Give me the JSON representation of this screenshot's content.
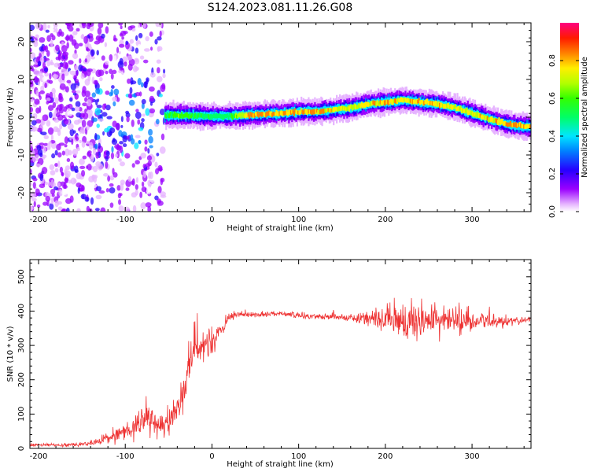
{
  "figure": {
    "title": "S124.2023.081.11.26.G08"
  },
  "chart_data": [
    {
      "type": "heatmap",
      "title": "S124.2023.081.11.26.G08",
      "xlabel": "Height of straight line (km)",
      "ylabel": "Frequency (Hz)",
      "xlim": [
        -210,
        368
      ],
      "ylim": [
        -25,
        25
      ],
      "xticks": [
        -200,
        -100,
        0,
        100,
        200,
        300
      ],
      "yticks": [
        -20,
        -10,
        0,
        10,
        20
      ],
      "colorbar": {
        "label": "Normalized spectral amplitude",
        "range": [
          0.0,
          1.0
        ],
        "ticks": [
          0.0,
          0.2,
          0.4,
          0.6,
          0.8
        ],
        "colormap": "hsv-like (magenta-blue-cyan-green-yellow-red)"
      },
      "ridge": {
        "x": [
          -55,
          -40,
          -20,
          0,
          20,
          40,
          60,
          80,
          100,
          120,
          140,
          160,
          180,
          200,
          220,
          240,
          260,
          280,
          300,
          320,
          340,
          360
        ],
        "frequency": [
          0.5,
          0.5,
          0.5,
          0.2,
          0.3,
          0.6,
          0.8,
          1.0,
          1.5,
          1.5,
          2.0,
          2.5,
          3.5,
          4.0,
          4.5,
          4.0,
          3.5,
          2.5,
          1.0,
          -0.5,
          -1.8,
          -2.5
        ],
        "amplitude": [
          0.6,
          0.7,
          0.65,
          0.6,
          0.6,
          0.9,
          0.95,
          0.9,
          0.9,
          0.9,
          0.85,
          0.8,
          0.85,
          0.9,
          0.85,
          0.9,
          0.85,
          0.85,
          0.85,
          0.85,
          0.9,
          0.9
        ]
      },
      "noise_region": {
        "x_range": [
          -210,
          -55
        ],
        "note": ""
      },
      "grid": false,
      "legend": "colorbar-right"
    },
    {
      "type": "line",
      "xlabel": "Height of straight line (km)",
      "ylabel": "SNR (10 * v/v)",
      "xlim": [
        -210,
        368
      ],
      "ylim": [
        0,
        550
      ],
      "xticks": [
        -200,
        -100,
        0,
        100,
        200,
        300
      ],
      "yticks": [
        0,
        100,
        200,
        300,
        400,
        500
      ],
      "series": [
        {
          "color": "#ee3333",
          "x": [
            -210,
            -180,
            -150,
            -130,
            -110,
            -90,
            -75,
            -60,
            -50,
            -40,
            -30,
            -20,
            -10,
            0,
            10,
            20,
            30,
            40,
            60,
            80,
            100,
            120,
            140,
            160,
            180,
            200,
            220,
            240,
            260,
            280,
            300,
            320,
            340,
            368
          ],
          "y": [
            10,
            10,
            12,
            20,
            40,
            60,
            90,
            60,
            70,
            120,
            200,
            300,
            310,
            300,
            340,
            380,
            390,
            390,
            390,
            395,
            385,
            385,
            385,
            380,
            380,
            375,
            370,
            370,
            375,
            370,
            370,
            370,
            370,
            375
          ],
          "noise_amplitude": [
            6,
            6,
            8,
            15,
            30,
            45,
            55,
            45,
            50,
            80,
            90,
            80,
            70,
            70,
            35,
            18,
            12,
            10,
            10,
            10,
            12,
            12,
            15,
            15,
            30,
            60,
            70,
            70,
            80,
            55,
            50,
            35,
            20,
            15
          ]
        }
      ],
      "grid": false
    }
  ]
}
